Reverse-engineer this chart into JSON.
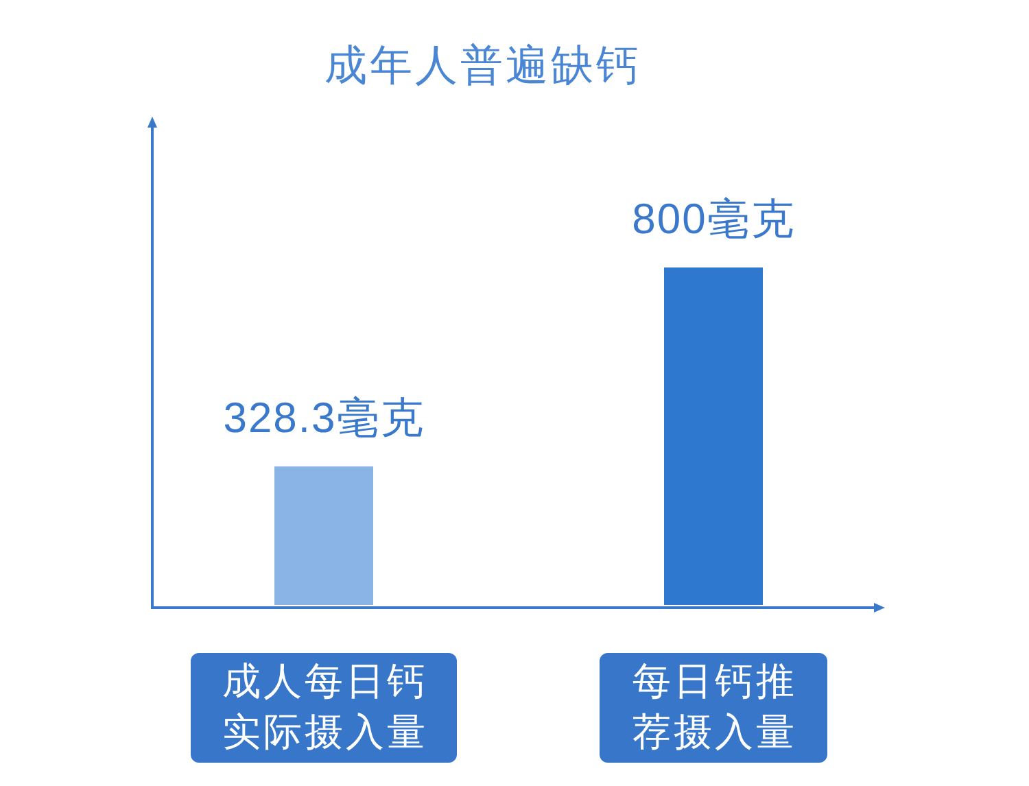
{
  "chart_data": {
    "type": "bar",
    "title": "成年人普遍缺钙",
    "categories": [
      "成人每日钙实际摄入量",
      "每日钙推荐摄入量"
    ],
    "values": [
      328.3,
      800
    ],
    "colors": [
      "#8ab4e6",
      "#2f78cf"
    ],
    "value_labels": [
      "328.3毫克",
      "800毫克"
    ],
    "tick_labels": "x"
  }
}
